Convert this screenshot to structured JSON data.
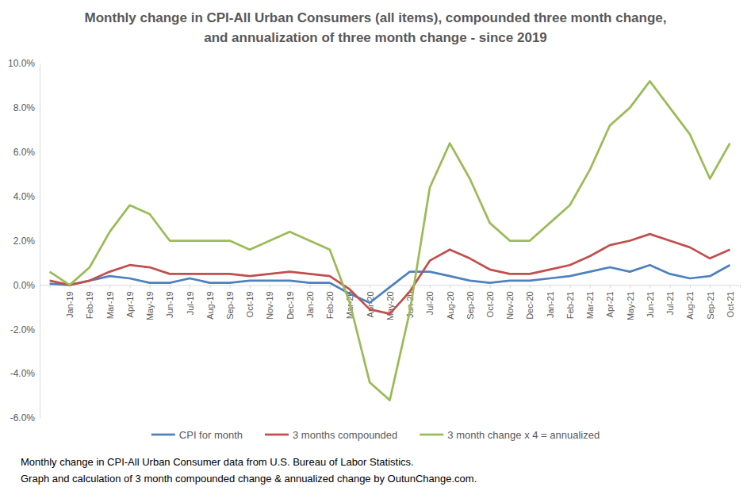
{
  "chart_data": {
    "type": "line",
    "title": "Monthly change in CPI-All Urban Consumers (all items), compounded three month change, and annualization of three month change - since 2019",
    "annotations": [
      "Monthly change in CPI-All Urban Consumer data from U.S. Bureau of Labor Statistics.",
      "Graph and calculation of 3 month compounded change & annualized change by OutunChange.com."
    ],
    "categories": [
      null,
      "Jan-19",
      "Feb-19",
      "Mar-19",
      "Apr-19",
      "May-19",
      "Jun-19",
      "Jul-19",
      "Aug-19",
      "Sep-19",
      "Oct-19",
      "Nov-19",
      "Dec-19",
      "Jan-20",
      "Feb-20",
      "Mar-20",
      "Apr-20",
      "May-20",
      "Jun-20",
      "Jul-20",
      "Aug-20",
      "Sep-20",
      "Oct-20",
      "Nov-20",
      "Dec-20",
      "Jan-21",
      "Feb-21",
      "Mar-21",
      "Apr-21",
      "May-21",
      "Jun-21",
      "Jul-21",
      "Aug-21",
      "Sep-21",
      "Oct-21"
    ],
    "series": [
      {
        "name": "CPI for month",
        "color": "#4f81bd",
        "values": [
          0.05,
          0.0,
          0.2,
          0.4,
          0.3,
          0.1,
          0.1,
          0.3,
          0.1,
          0.1,
          0.2,
          0.2,
          0.2,
          0.1,
          0.1,
          -0.4,
          -0.8,
          -0.1,
          0.6,
          0.6,
          0.4,
          0.2,
          0.1,
          0.2,
          0.2,
          0.3,
          0.4,
          0.6,
          0.8,
          0.6,
          0.9,
          0.5,
          0.3,
          0.4,
          0.9
        ]
      },
      {
        "name": "3 months compounded",
        "color": "#c0504d",
        "values": [
          0.2,
          0.0,
          0.2,
          0.6,
          0.9,
          0.8,
          0.5,
          0.5,
          0.5,
          0.5,
          0.4,
          0.5,
          0.6,
          0.5,
          0.4,
          -0.2,
          -1.1,
          -1.3,
          -0.3,
          1.1,
          1.6,
          1.2,
          0.7,
          0.5,
          0.5,
          0.7,
          0.9,
          1.3,
          1.8,
          2.0,
          2.3,
          2.0,
          1.7,
          1.2,
          1.6
        ]
      },
      {
        "name": "3 month change x 4 = annualized",
        "color": "#9bbb59",
        "values": [
          0.6,
          0.0,
          0.8,
          2.4,
          3.6,
          3.2,
          2.0,
          2.0,
          2.0,
          2.0,
          1.6,
          2.0,
          2.4,
          2.0,
          1.6,
          -0.8,
          -4.4,
          -5.2,
          -1.2,
          4.4,
          6.4,
          4.8,
          2.8,
          2.0,
          2.0,
          2.8,
          3.6,
          5.2,
          7.2,
          8.0,
          9.2,
          8.0,
          6.8,
          4.8,
          6.4
        ]
      }
    ],
    "ylim": [
      -6,
      10
    ],
    "yticks": [
      {
        "value": -6,
        "label": "-6.0%"
      },
      {
        "value": -4,
        "label": "-4.0%"
      },
      {
        "value": -2,
        "label": "-2.0%"
      },
      {
        "value": 0,
        "label": "0.0%"
      },
      {
        "value": 2,
        "label": "2.0%"
      },
      {
        "value": 4,
        "label": "4.0%"
      },
      {
        "value": 6,
        "label": "6.0%"
      },
      {
        "value": 8,
        "label": "8.0%"
      },
      {
        "value": 10,
        "label": "10.0%"
      }
    ],
    "grid": false,
    "legend": "bottom"
  }
}
